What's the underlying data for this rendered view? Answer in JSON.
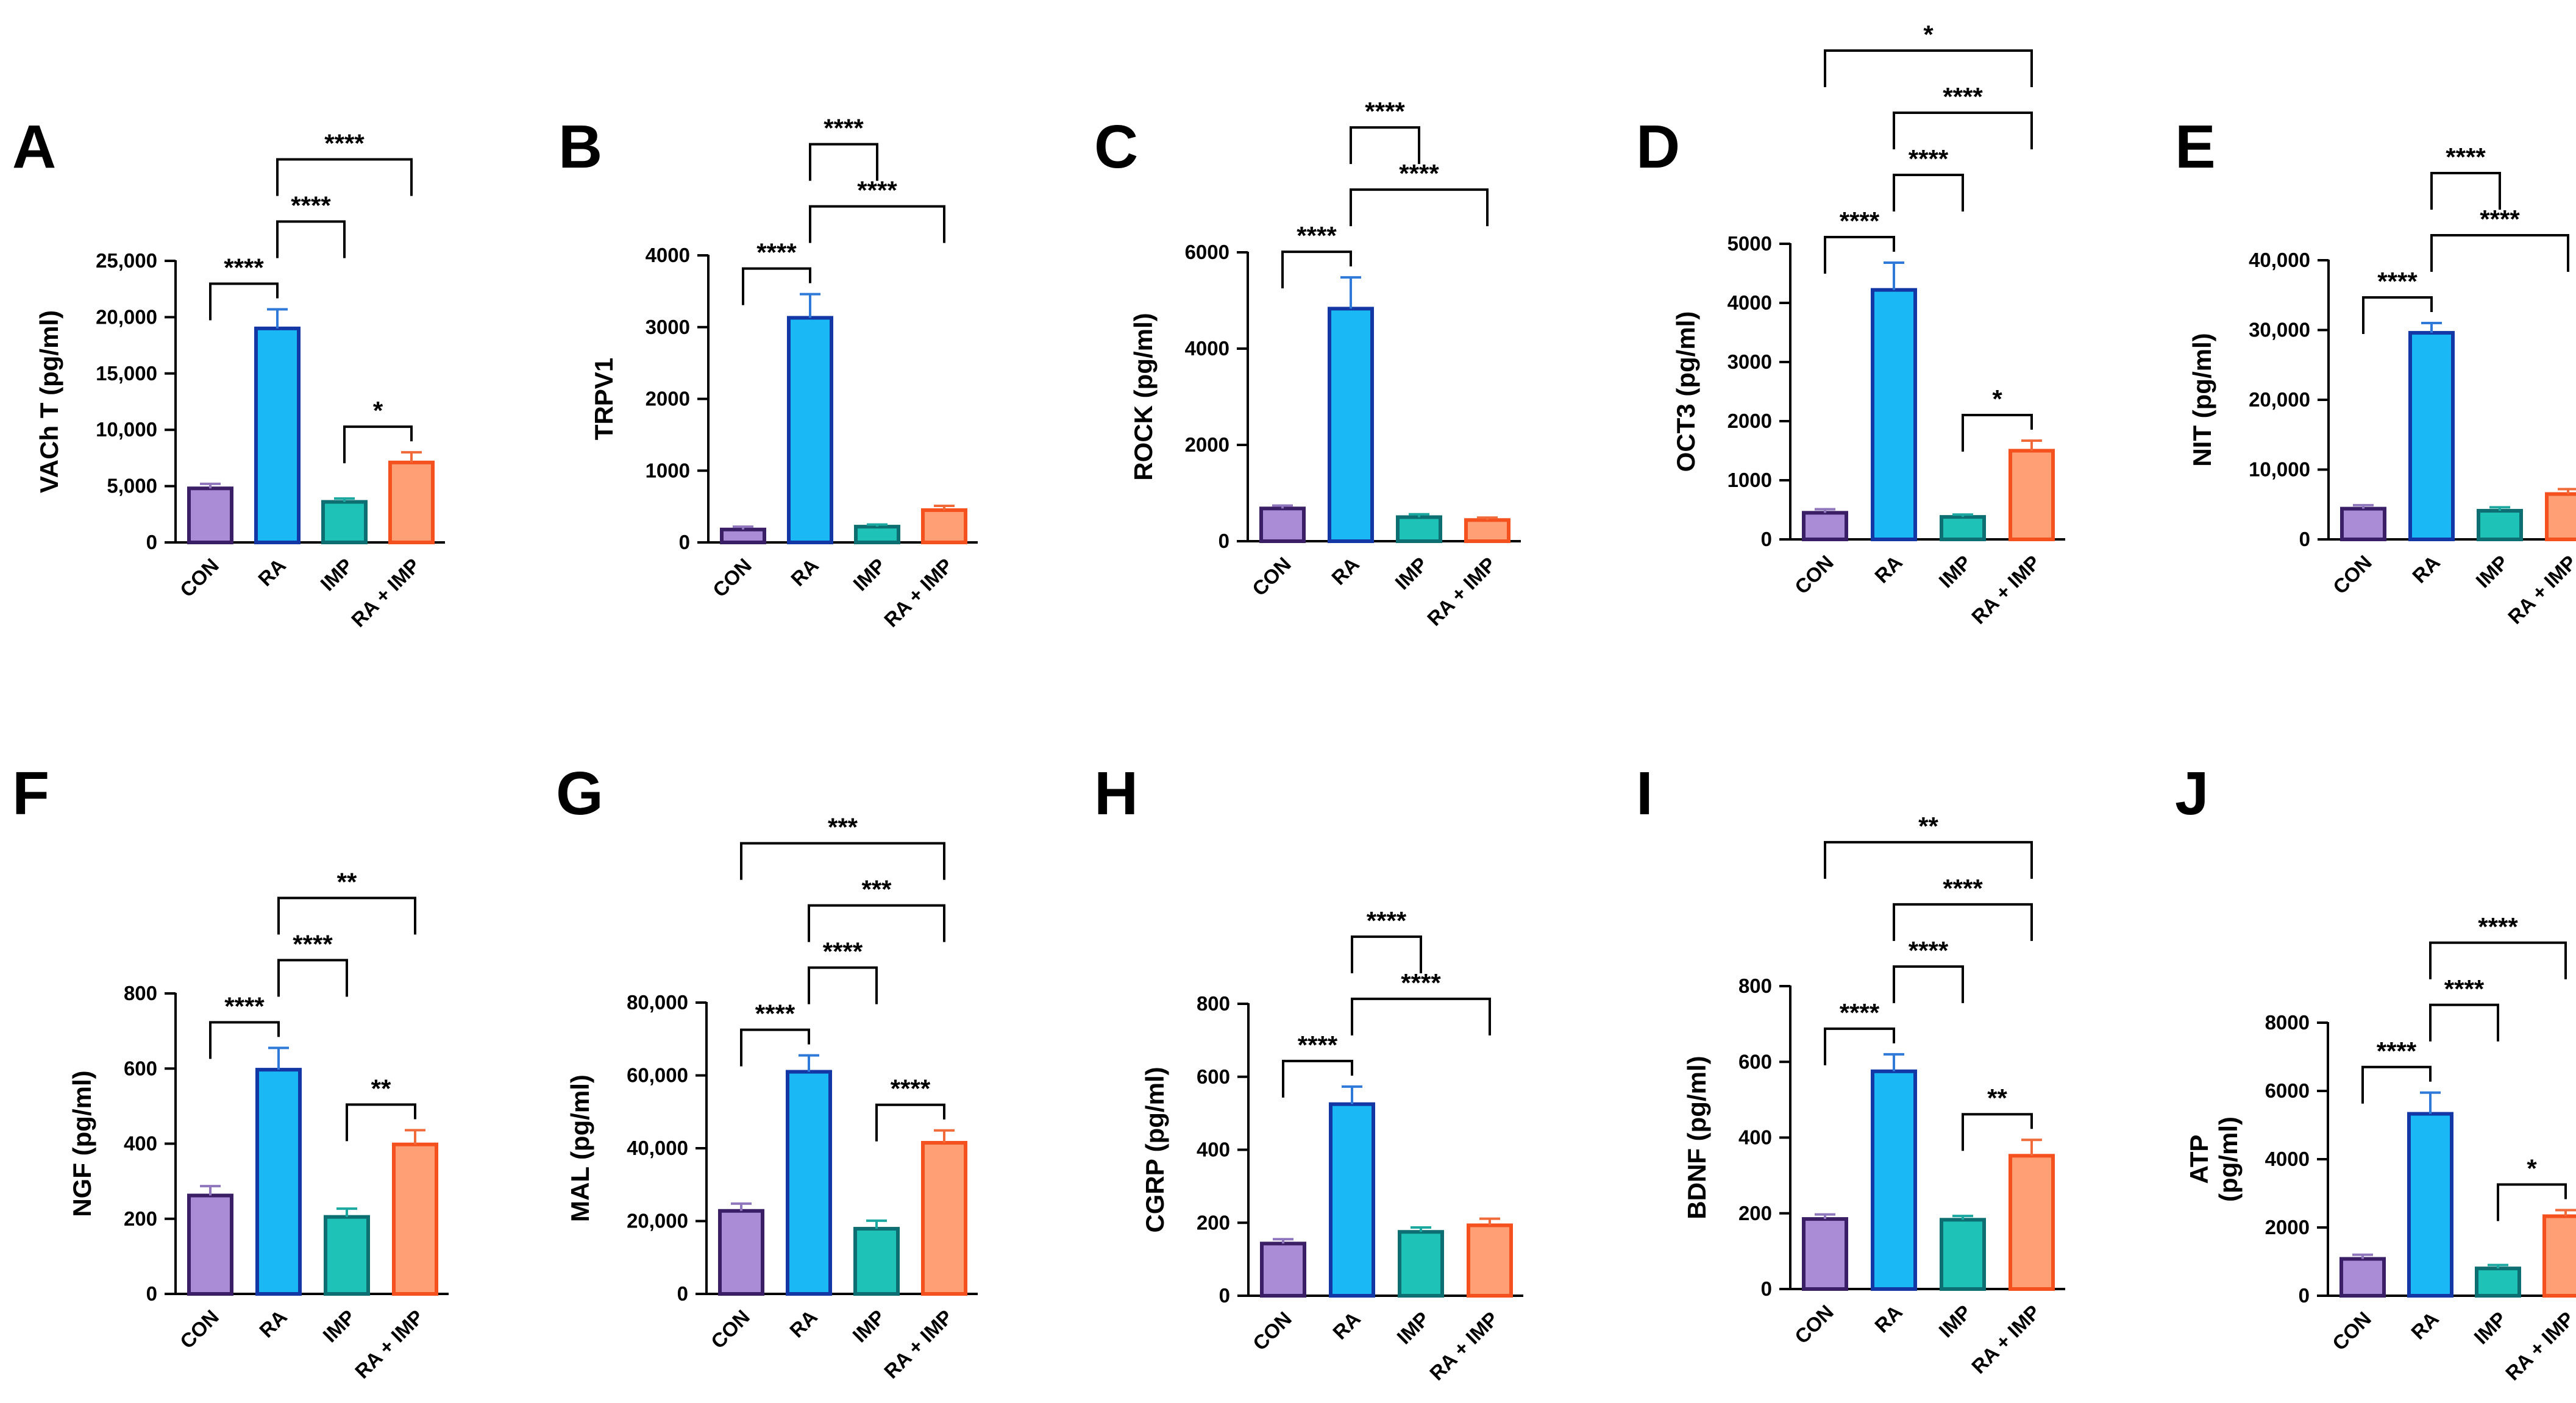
{
  "figure": {
    "categories": [
      "CON",
      "RA",
      "IMP",
      "RA + IMP"
    ],
    "colors": {
      "fills": [
        "#a98bd6",
        "#1ab8f5",
        "#1fc2b6",
        "#ff9f76"
      ],
      "strokes": [
        "#3b1f66",
        "#1338a6",
        "#0d6f72",
        "#f4511e"
      ],
      "errors": [
        "#9077bd",
        "#2f7ad9",
        "#1aa8a0",
        "#f06a3a"
      ],
      "axis": "#000000"
    }
  },
  "chart_data": [
    {
      "panel": "A",
      "type": "bar",
      "ylabel": "VACh T (pg/ml)",
      "ylim": [
        0,
        25000
      ],
      "yticks": [
        0,
        5000,
        10000,
        15000,
        20000,
        25000
      ],
      "ytick_labels": [
        "0",
        "5,000",
        "10,000",
        "15,000",
        "20,000",
        "25,000"
      ],
      "categories": [
        "CON",
        "RA",
        "IMP",
        "RA + IMP"
      ],
      "values": [
        4800,
        19000,
        3600,
        7100
      ],
      "errors": [
        400,
        1700,
        300,
        900
      ],
      "significance": [
        {
          "from": 0,
          "to": 1,
          "label": "****"
        },
        {
          "from": 2,
          "to": 3,
          "label": "*"
        },
        {
          "from": 1,
          "to": 2,
          "label": "****"
        },
        {
          "from": 1,
          "to": 3,
          "label": "****"
        }
      ]
    },
    {
      "panel": "B",
      "type": "bar",
      "ylabel": "TRPV1",
      "ylim": [
        0,
        4000
      ],
      "yticks": [
        0,
        1000,
        2000,
        3000,
        4000
      ],
      "ytick_labels": [
        "0",
        "1000",
        "2000",
        "3000",
        "4000"
      ],
      "categories": [
        "CON",
        "RA",
        "IMP",
        "RA + IMP"
      ],
      "values": [
        180,
        3130,
        220,
        450
      ],
      "errors": [
        40,
        330,
        30,
        60
      ],
      "significance": [
        {
          "from": 0,
          "to": 1,
          "label": "****"
        },
        {
          "from": 1,
          "to": 3,
          "label": "****"
        },
        {
          "from": 1,
          "to": 2,
          "label": "****"
        }
      ]
    },
    {
      "panel": "C",
      "type": "bar",
      "ylabel": "ROCK (pg/ml)",
      "ylim": [
        0,
        6000
      ],
      "yticks": [
        0,
        2000,
        4000,
        6000
      ],
      "ytick_labels": [
        "0",
        "2000",
        "4000",
        "6000"
      ],
      "categories": [
        "CON",
        "RA",
        "IMP",
        "RA + IMP"
      ],
      "values": [
        680,
        4830,
        500,
        440
      ],
      "errors": [
        60,
        650,
        60,
        50
      ],
      "significance": [
        {
          "from": 0,
          "to": 1,
          "label": "****"
        },
        {
          "from": 1,
          "to": 3,
          "label": "****"
        },
        {
          "from": 1,
          "to": 2,
          "label": "****"
        }
      ]
    },
    {
      "panel": "D",
      "type": "bar",
      "ylabel": "OCT3 (pg/ml)",
      "ylim": [
        0,
        5000
      ],
      "yticks": [
        0,
        1000,
        2000,
        3000,
        4000,
        5000
      ],
      "ytick_labels": [
        "0",
        "1000",
        "2000",
        "3000",
        "4000",
        "5000"
      ],
      "categories": [
        "CON",
        "RA",
        "IMP",
        "RA + IMP"
      ],
      "values": [
        450,
        4220,
        380,
        1500
      ],
      "errors": [
        60,
        460,
        40,
        170
      ],
      "significance": [
        {
          "from": 0,
          "to": 1,
          "label": "****"
        },
        {
          "from": 2,
          "to": 3,
          "label": "*"
        },
        {
          "from": 1,
          "to": 2,
          "label": "****"
        },
        {
          "from": 1,
          "to": 3,
          "label": "****"
        },
        {
          "from": 0,
          "to": 3,
          "label": "*"
        }
      ]
    },
    {
      "panel": "E",
      "type": "bar",
      "ylabel": "NIT (pg/ml)",
      "ylim": [
        0,
        40000
      ],
      "yticks": [
        0,
        10000,
        20000,
        30000,
        40000
      ],
      "ytick_labels": [
        "0",
        "10,000",
        "20,000",
        "30,000",
        "40,000"
      ],
      "categories": [
        "CON",
        "RA",
        "IMP",
        "RA + IMP"
      ],
      "values": [
        4400,
        29600,
        4100,
        6500
      ],
      "errors": [
        500,
        1400,
        500,
        700
      ],
      "significance": [
        {
          "from": 0,
          "to": 1,
          "label": "****"
        },
        {
          "from": 1,
          "to": 3,
          "label": "****"
        },
        {
          "from": 1,
          "to": 2,
          "label": "****"
        }
      ]
    },
    {
      "panel": "F",
      "type": "bar",
      "ylabel": "NGF (pg/ml)",
      "ylim": [
        0,
        800
      ],
      "yticks": [
        0,
        200,
        400,
        600,
        800
      ],
      "ytick_labels": [
        "0",
        "200",
        "400",
        "600",
        "800"
      ],
      "categories": [
        "CON",
        "RA",
        "IMP",
        "RA + IMP"
      ],
      "values": [
        262,
        597,
        205,
        398
      ],
      "errors": [
        25,
        58,
        22,
        38
      ],
      "significance": [
        {
          "from": 0,
          "to": 1,
          "label": "****"
        },
        {
          "from": 2,
          "to": 3,
          "label": "**"
        },
        {
          "from": 1,
          "to": 2,
          "label": "****"
        },
        {
          "from": 1,
          "to": 3,
          "label": "**"
        }
      ]
    },
    {
      "panel": "G",
      "type": "bar",
      "ylabel": "MAL (pg/ml)",
      "ylim": [
        0,
        80000
      ],
      "yticks": [
        0,
        20000,
        40000,
        60000,
        80000
      ],
      "ytick_labels": [
        "0",
        "20,000",
        "40,000",
        "60,000",
        "80,000"
      ],
      "categories": [
        "CON",
        "RA",
        "IMP",
        "RA + IMP"
      ],
      "values": [
        22800,
        61000,
        17900,
        41500
      ],
      "errors": [
        2000,
        4500,
        2200,
        3400
      ],
      "significance": [
        {
          "from": 0,
          "to": 1,
          "label": "****"
        },
        {
          "from": 2,
          "to": 3,
          "label": "****"
        },
        {
          "from": 1,
          "to": 2,
          "label": "****"
        },
        {
          "from": 1,
          "to": 3,
          "label": "***"
        },
        {
          "from": 0,
          "to": 3,
          "label": "***"
        }
      ]
    },
    {
      "panel": "H",
      "type": "bar",
      "ylabel": "CGRP (pg/ml)",
      "ylim": [
        0,
        800
      ],
      "yticks": [
        0,
        200,
        400,
        600,
        800
      ],
      "ytick_labels": [
        "0",
        "200",
        "400",
        "600",
        "800"
      ],
      "categories": [
        "CON",
        "RA",
        "IMP",
        "RA + IMP"
      ],
      "values": [
        143,
        525,
        175,
        193
      ],
      "errors": [
        12,
        48,
        12,
        18
      ],
      "significance": [
        {
          "from": 0,
          "to": 1,
          "label": "****"
        },
        {
          "from": 1,
          "to": 3,
          "label": "****"
        },
        {
          "from": 1,
          "to": 2,
          "label": "****"
        }
      ]
    },
    {
      "panel": "I",
      "type": "bar",
      "ylabel": "BDNF (pg/ml)",
      "ylim": [
        0,
        800
      ],
      "yticks": [
        0,
        200,
        400,
        600,
        800
      ],
      "ytick_labels": [
        "0",
        "200",
        "400",
        "600",
        "800"
      ],
      "categories": [
        "CON",
        "RA",
        "IMP",
        "RA + IMP"
      ],
      "values": [
        185,
        575,
        183,
        352
      ],
      "errors": [
        12,
        45,
        10,
        42
      ],
      "significance": [
        {
          "from": 0,
          "to": 1,
          "label": "****"
        },
        {
          "from": 2,
          "to": 3,
          "label": "**"
        },
        {
          "from": 1,
          "to": 2,
          "label": "****"
        },
        {
          "from": 1,
          "to": 3,
          "label": "****"
        },
        {
          "from": 0,
          "to": 3,
          "label": "**"
        }
      ]
    },
    {
      "panel": "J",
      "type": "bar",
      "ylabel": "ATP (pg/ml)",
      "ylabel_lines": [
        "ATP",
        "(pg/ml)"
      ],
      "ylim": [
        0,
        8000
      ],
      "yticks": [
        0,
        2000,
        4000,
        6000,
        8000
      ],
      "ytick_labels": [
        "0",
        "2000",
        "4000",
        "6000",
        "8000"
      ],
      "categories": [
        "CON",
        "RA",
        "IMP",
        "RA + IMP"
      ],
      "values": [
        1080,
        5330,
        800,
        2330
      ],
      "errors": [
        120,
        620,
        100,
        180
      ],
      "significance": [
        {
          "from": 0,
          "to": 1,
          "label": "****"
        },
        {
          "from": 2,
          "to": 3,
          "label": "*"
        },
        {
          "from": 1,
          "to": 2,
          "label": "****"
        },
        {
          "from": 1,
          "to": 3,
          "label": "****"
        }
      ]
    }
  ]
}
